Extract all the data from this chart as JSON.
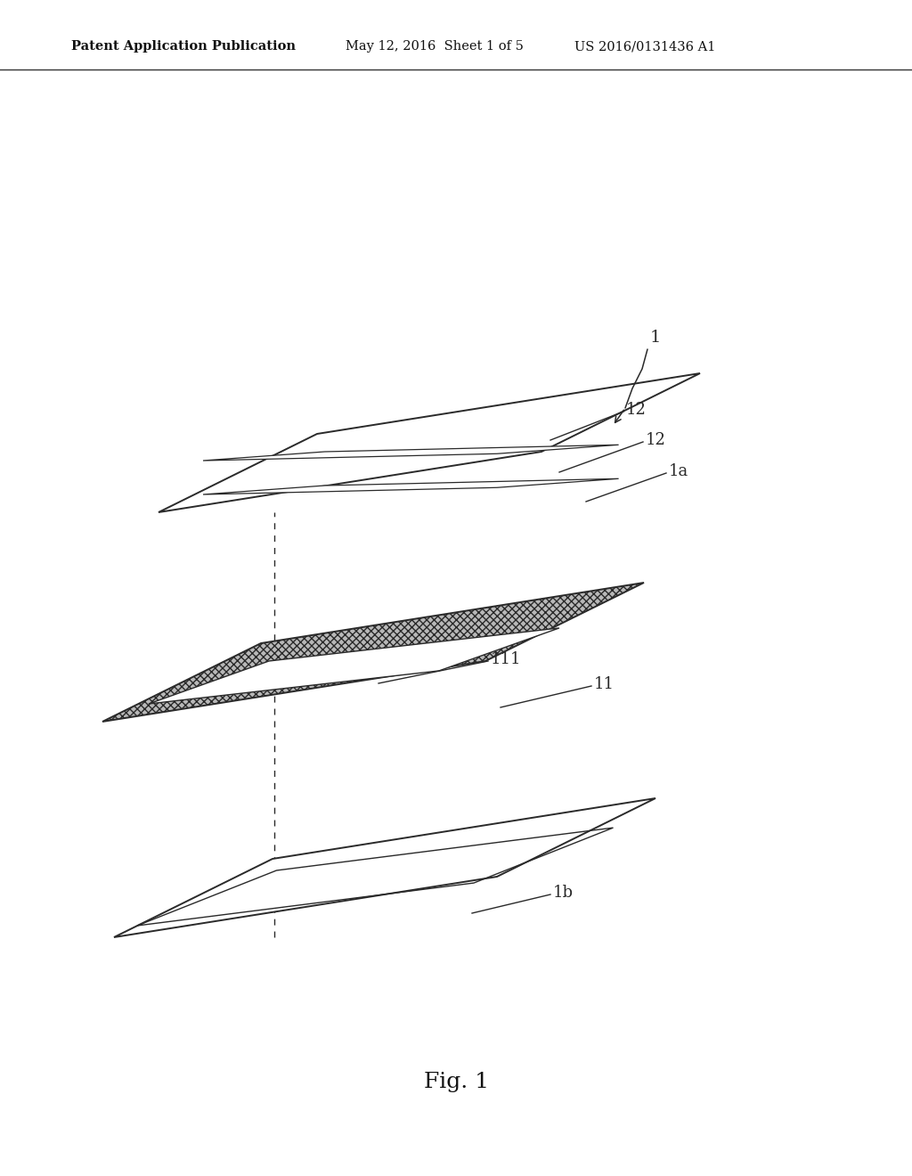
{
  "bg_color": "#ffffff",
  "lc": "#2a2a2a",
  "header_left": "Patent Application Publication",
  "header_mid": "May 12, 2016  Sheet 1 of 5",
  "header_right": "US 2016/0131436 A1",
  "fig_label": "Fig. 1"
}
